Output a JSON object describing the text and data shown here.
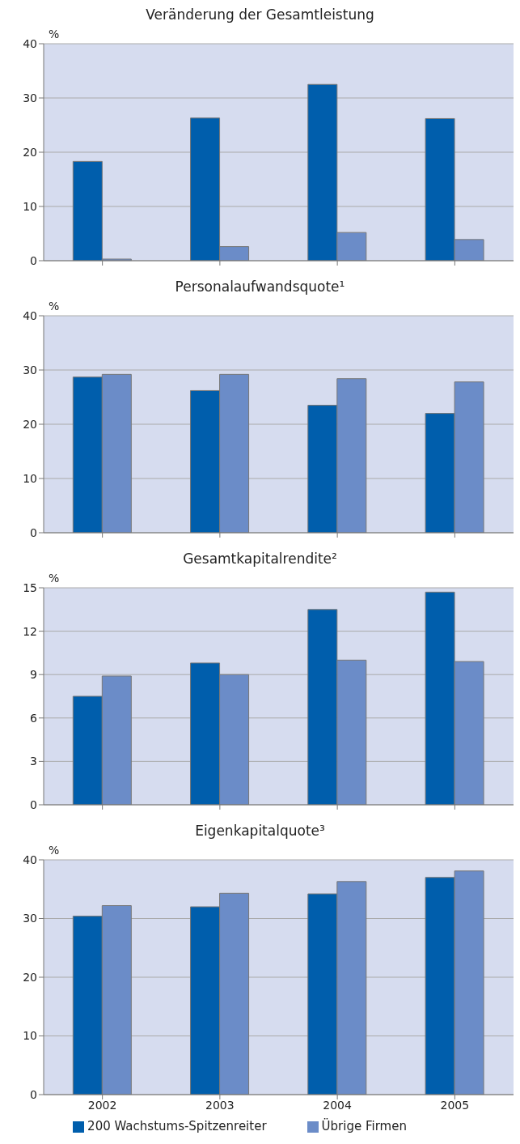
{
  "chart_data": [
    {
      "type": "bar",
      "title": "Veränderung der Gesamtleistung",
      "ylabel": "%",
      "categories": [
        "2002",
        "2003",
        "2004",
        "2005"
      ],
      "series": [
        {
          "color": "#005eac",
          "values": [
            18.3,
            26.3,
            32.5,
            26.2
          ]
        },
        {
          "color": "#6b8cc8",
          "values": [
            0.3,
            2.6,
            5.2,
            3.9
          ]
        }
      ],
      "ylim": [
        0,
        40
      ],
      "yticks": [
        0,
        10,
        20,
        30,
        40
      ],
      "grid": "y",
      "tick_labels": "y"
    },
    {
      "type": "bar",
      "title": "Personalaufwandsquote¹",
      "ylabel": "%",
      "categories": [
        "2002",
        "2003",
        "2004",
        "2005"
      ],
      "series": [
        {
          "color": "#005eac",
          "values": [
            28.7,
            26.2,
            23.5,
            22.0
          ]
        },
        {
          "color": "#6b8cc8",
          "values": [
            29.2,
            29.2,
            28.4,
            27.8
          ]
        }
      ],
      "ylim": [
        0,
        40
      ],
      "yticks": [
        0,
        10,
        20,
        30,
        40
      ],
      "grid": "y",
      "tick_labels": "y"
    },
    {
      "type": "bar",
      "title": "Gesamtkapitalrendite²",
      "ylabel": "%",
      "categories": [
        "2002",
        "2003",
        "2004",
        "2005"
      ],
      "series": [
        {
          "color": "#005eac",
          "values": [
            7.5,
            9.8,
            13.5,
            14.7
          ]
        },
        {
          "color": "#6b8cc8",
          "values": [
            8.9,
            9.0,
            10.0,
            9.9
          ]
        }
      ],
      "ylim": [
        0,
        15
      ],
      "yticks": [
        0,
        3,
        6,
        9,
        12,
        15
      ],
      "grid": "y",
      "tick_labels": "y"
    },
    {
      "type": "bar",
      "title": "Eigenkapitalquote³",
      "ylabel": "%",
      "categories": [
        "2002",
        "2003",
        "2004",
        "2005"
      ],
      "series": [
        {
          "name": "200 Wachstums-Spitzenreiter",
          "color": "#005eac",
          "values": [
            30.4,
            32.0,
            34.2,
            37.0
          ]
        },
        {
          "name": "Übrige Firmen",
          "color": "#6b8cc8",
          "values": [
            32.2,
            34.3,
            36.3,
            38.1
          ]
        }
      ],
      "ylim": [
        0,
        40
      ],
      "yticks": [
        0,
        10,
        20,
        30,
        40
      ],
      "grid": "y",
      "legend": "bottom"
    }
  ]
}
